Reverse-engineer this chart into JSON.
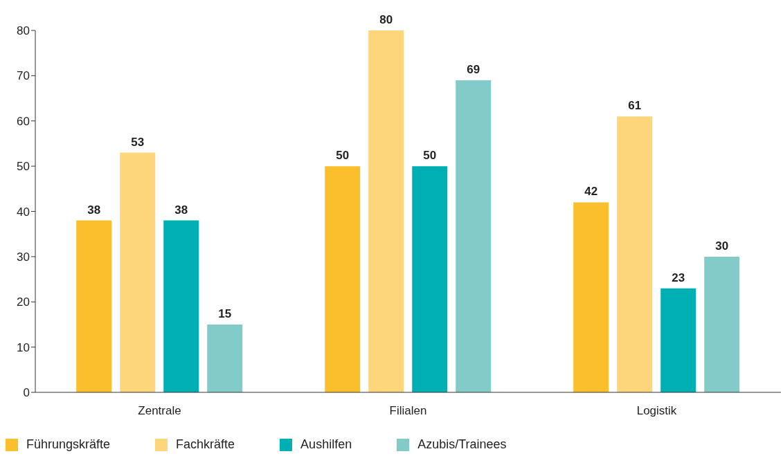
{
  "chart_data": {
    "type": "bar",
    "categories": [
      "Zentrale",
      "Filialen",
      "Logistik"
    ],
    "series": [
      {
        "name": "Führungskräfte",
        "color": "#fbbf2d",
        "values": [
          38,
          50,
          42
        ]
      },
      {
        "name": "Fachkräfte",
        "color": "#fdd57a",
        "values": [
          53,
          80,
          61
        ]
      },
      {
        "name": "Aushilfen",
        "color": "#00afb4",
        "values": [
          38,
          50,
          23
        ]
      },
      {
        "name": "Azubis/Trainees",
        "color": "#82cbc8",
        "values": [
          15,
          69,
          30
        ]
      }
    ],
    "ylim": [
      0,
      80
    ],
    "yticks": [
      0,
      10,
      20,
      30,
      40,
      50,
      60,
      70,
      80
    ],
    "grid": false,
    "legend": "bottom left",
    "data_labels": true
  }
}
